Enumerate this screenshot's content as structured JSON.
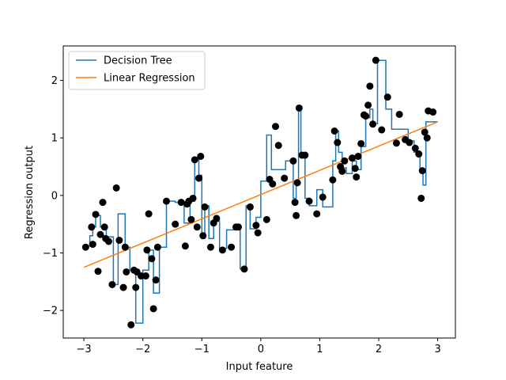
{
  "chart_data": {
    "type": "scatter",
    "title": "",
    "xlabel": "Input feature",
    "ylabel": "Regression output",
    "xlim": [
      -3.35,
      3.3
    ],
    "ylim": [
      -2.48,
      2.6
    ],
    "xticks": [
      -3,
      -2,
      -1,
      0,
      1,
      2,
      3
    ],
    "xtick_labels": [
      "−3",
      "−2",
      "−1",
      "0",
      "1",
      "2",
      "3"
    ],
    "yticks": [
      -2,
      -1,
      0,
      1,
      2
    ],
    "ytick_labels": [
      "−2",
      "−1",
      "0",
      "1",
      "2"
    ],
    "grid": false,
    "legend_position": "top-left",
    "series": [
      {
        "name": "Decision Tree",
        "kind": "step",
        "color": "#1f77b4",
        "x": [
          -3.0,
          -2.9,
          -2.85,
          -2.8,
          -2.72,
          -2.62,
          -2.5,
          -2.42,
          -2.3,
          -2.22,
          -2.12,
          -2.0,
          -1.9,
          -1.82,
          -1.72,
          -1.6,
          -1.45,
          -1.3,
          -1.2,
          -1.12,
          -1.05,
          -1.0,
          -0.95,
          -0.88,
          -0.8,
          -0.7,
          -0.58,
          -0.46,
          -0.35,
          -0.25,
          -0.18,
          -0.08,
          0.0,
          0.1,
          0.18,
          0.25,
          0.32,
          0.42,
          0.55,
          0.6,
          0.64,
          0.68,
          0.75,
          0.82,
          0.95,
          1.05,
          1.22,
          1.27,
          1.32,
          1.38,
          1.45,
          1.55,
          1.62,
          1.7,
          1.78,
          1.85,
          1.9,
          1.98,
          2.05,
          2.12,
          2.22,
          2.35,
          2.5,
          2.6,
          2.7,
          2.75,
          2.8,
          2.85,
          3.0
        ],
        "y": [
          -0.88,
          -0.7,
          -0.55,
          -0.35,
          -0.55,
          -0.72,
          -1.55,
          -0.32,
          -0.9,
          -1.3,
          -2.22,
          -1.3,
          -0.95,
          -1.7,
          -0.9,
          -0.1,
          -0.12,
          -0.48,
          -0.1,
          0.62,
          0.35,
          -0.75,
          -0.18,
          -0.75,
          -0.45,
          -0.92,
          -0.6,
          -0.52,
          -1.28,
          -0.18,
          -0.58,
          -0.38,
          0.25,
          1.05,
          0.45,
          0.45,
          0.45,
          0.6,
          -0.05,
          0.2,
          1.52,
          0.7,
          -0.05,
          -0.18,
          0.1,
          -0.2,
          0.6,
          1.12,
          0.75,
          0.48,
          0.38,
          0.6,
          0.45,
          0.85,
          1.35,
          1.5,
          1.25,
          2.35,
          2.35,
          1.5,
          1.15,
          1.15,
          0.95,
          0.75,
          0.42,
          0.18,
          1.28,
          1.28,
          1.28
        ]
      },
      {
        "name": "Linear Regression",
        "kind": "line",
        "color": "#ff7f0e",
        "x": [
          -3.0,
          3.0
        ],
        "y": [
          -1.25,
          1.28
        ]
      },
      {
        "name": "",
        "kind": "scatter",
        "color": "#000000",
        "x": [
          -2.97,
          -2.87,
          -2.85,
          -2.8,
          -2.76,
          -2.72,
          -2.68,
          -2.65,
          -2.63,
          -2.58,
          -2.52,
          -2.45,
          -2.4,
          -2.33,
          -2.3,
          -2.28,
          -2.2,
          -2.15,
          -2.12,
          -2.1,
          -2.03,
          -1.95,
          -1.93,
          -1.9,
          -1.85,
          -1.82,
          -1.78,
          -1.75,
          -1.6,
          -1.45,
          -1.35,
          -1.28,
          -1.25,
          -1.22,
          -1.18,
          -1.15,
          -1.12,
          -1.08,
          -1.05,
          -1.02,
          -0.98,
          -0.95,
          -0.85,
          -0.8,
          -0.75,
          -0.65,
          -0.5,
          -0.42,
          -0.38,
          -0.28,
          -0.18,
          -0.08,
          -0.05,
          0.1,
          0.15,
          0.2,
          0.25,
          0.3,
          0.4,
          0.55,
          0.58,
          0.6,
          0.62,
          0.65,
          0.7,
          0.75,
          0.82,
          0.95,
          1.05,
          1.22,
          1.25,
          1.3,
          1.35,
          1.38,
          1.42,
          1.55,
          1.6,
          1.62,
          1.65,
          1.7,
          1.75,
          1.78,
          1.82,
          1.85,
          1.9,
          1.95,
          2.05,
          2.15,
          2.3,
          2.35,
          2.45,
          2.52,
          2.62,
          2.68,
          2.72,
          2.74,
          2.78,
          2.82,
          2.84,
          2.92
        ],
        "y": [
          -0.9,
          -0.55,
          -0.85,
          -0.33,
          -1.32,
          -0.68,
          -0.12,
          -0.55,
          -0.75,
          -0.8,
          -1.55,
          0.13,
          -0.78,
          -1.6,
          -0.9,
          -1.33,
          -2.25,
          -1.3,
          -1.6,
          -1.33,
          -1.4,
          -1.4,
          -0.95,
          -0.32,
          -1.1,
          -1.97,
          -1.47,
          -0.9,
          -0.1,
          -0.5,
          -0.12,
          -0.88,
          -0.15,
          -0.1,
          -0.42,
          -0.05,
          0.62,
          -0.55,
          0.3,
          0.68,
          -0.7,
          -0.2,
          -0.9,
          -0.48,
          -0.4,
          -0.95,
          -0.9,
          -0.55,
          -0.55,
          -1.28,
          -0.2,
          -0.52,
          -0.65,
          -0.42,
          0.28,
          0.2,
          1.2,
          0.87,
          0.3,
          0.6,
          -0.12,
          -0.35,
          0.22,
          1.52,
          0.7,
          0.7,
          -0.1,
          -0.32,
          -0.03,
          0.27,
          1.12,
          0.92,
          0.5,
          0.42,
          0.6,
          0.65,
          0.47,
          0.32,
          0.68,
          0.9,
          1.4,
          1.38,
          1.57,
          1.9,
          1.24,
          2.35,
          1.14,
          1.71,
          0.91,
          1.41,
          0.97,
          0.92,
          0.82,
          0.72,
          -0.05,
          0.43,
          1.1,
          1.0,
          1.47,
          1.45
        ]
      }
    ]
  }
}
